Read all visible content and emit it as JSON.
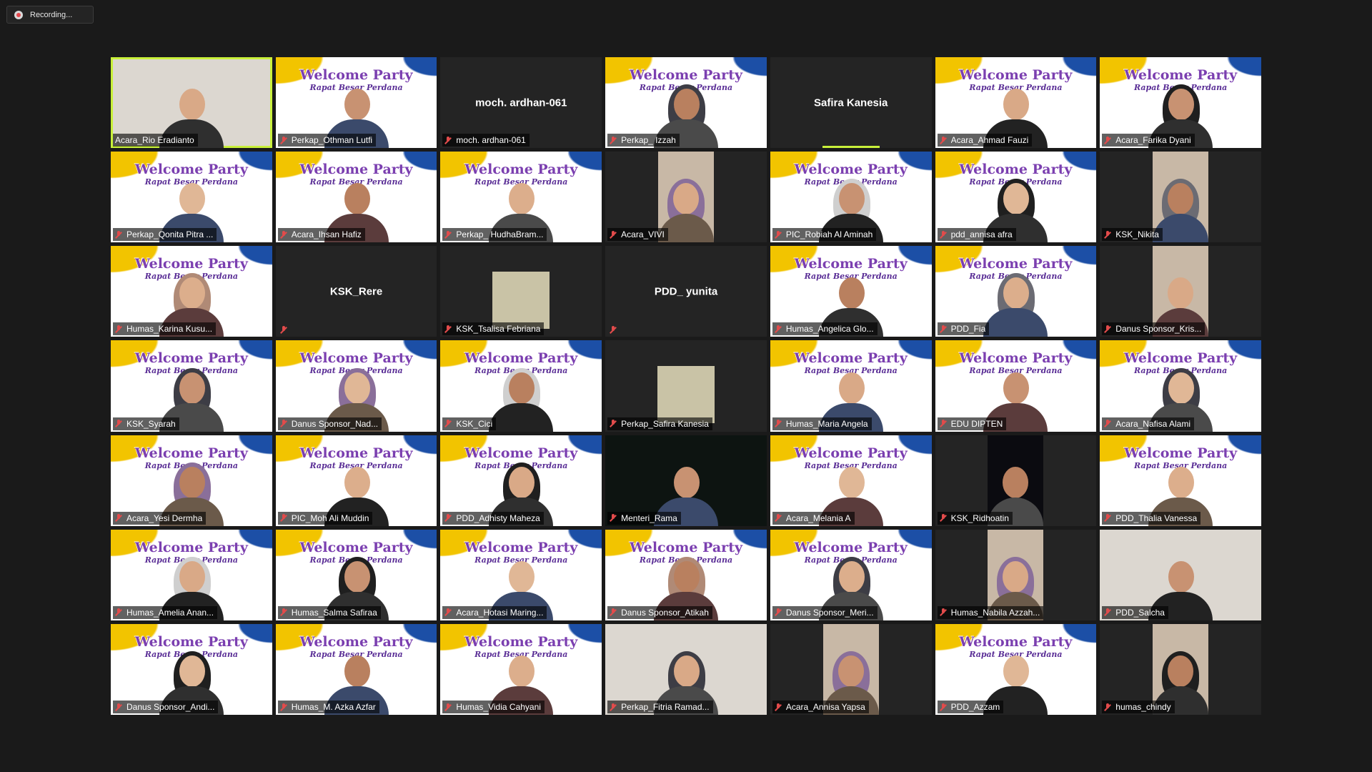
{
  "recording": {
    "label": "Recording..."
  },
  "participants": [
    {
      "name": "Acara_Rio Eradianto",
      "video": "photo",
      "speaking": true,
      "muted": false
    },
    {
      "name": "Perkap_Othman Lutfi",
      "video": "banner",
      "muted": true
    },
    {
      "name": "moch. ardhan-061",
      "video": "off",
      "display": "moch. ardhan-061",
      "muted": true
    },
    {
      "name": "Perkap_ Izzah",
      "video": "banner",
      "muted": true,
      "hijab": true
    },
    {
      "name": "Safira Kanesia",
      "video": "off",
      "display": "Safira Kanesia",
      "muted": false,
      "talking": true
    },
    {
      "name": "Acara_Ahmad Fauzi",
      "video": "banner",
      "muted": true
    },
    {
      "name": "Acara_Farika Dyani",
      "video": "banner",
      "muted": true,
      "hijab": true
    },
    {
      "name": "Perkap_Qonita Pitra ...",
      "video": "banner",
      "muted": true
    },
    {
      "name": "Acara_Ihsan Hafiz",
      "video": "banner",
      "muted": true
    },
    {
      "name": "Perkap_ HudhaBram...",
      "video": "banner",
      "muted": true
    },
    {
      "name": "Acara_VIVI",
      "video": "inset",
      "muted": true,
      "hijab": true
    },
    {
      "name": "PIC_Robiah Al Aminah",
      "video": "banner",
      "muted": true,
      "hijab": true
    },
    {
      "name": "pdd_annisa afra",
      "video": "banner",
      "muted": true,
      "hijab": true
    },
    {
      "name": "KSK_Nikita",
      "video": "inset",
      "muted": true,
      "hijab": true
    },
    {
      "name": "Humas_Karina Kusu...",
      "video": "banner",
      "muted": true,
      "hijab": true
    },
    {
      "name": "KSK_Rere",
      "video": "off",
      "display": "KSK_Rere",
      "muted": true,
      "notag": true
    },
    {
      "name": "KSK_Tsalisa Febriana",
      "video": "small",
      "muted": true
    },
    {
      "name": "PDD_ yunita",
      "video": "off",
      "display": "PDD_ yunita",
      "muted": true,
      "notag": true
    },
    {
      "name": "Humas_Angelica Glo...",
      "video": "banner",
      "muted": true
    },
    {
      "name": "PDD_Fia",
      "video": "banner",
      "muted": true,
      "hijab": true
    },
    {
      "name": "Danus Sponsor_Kris...",
      "video": "inset",
      "muted": true
    },
    {
      "name": "KSK_Syarah",
      "video": "banner",
      "muted": true,
      "hijab": true
    },
    {
      "name": "Danus Sponsor_Nad...",
      "video": "banner",
      "muted": true,
      "hijab": true
    },
    {
      "name": "KSK_Cici",
      "video": "banner",
      "muted": true,
      "hijab": true
    },
    {
      "name": "Perkap_Safira Kanesia",
      "video": "small",
      "muted": true
    },
    {
      "name": "Humas_Maria Angela",
      "video": "banner",
      "muted": true
    },
    {
      "name": "EDU DIPTEN",
      "video": "banner",
      "muted": true
    },
    {
      "name": "Acara_Nafisa Alami",
      "video": "banner",
      "muted": true,
      "hijab": true
    },
    {
      "name": "Acara_Yesi Dermha",
      "video": "banner",
      "muted": true,
      "hijab": true
    },
    {
      "name": "PIC_Moh Ali Muddin",
      "video": "banner",
      "muted": true
    },
    {
      "name": "PDD_Adhisty Maheza",
      "video": "banner",
      "muted": true,
      "hijab": true
    },
    {
      "name": "Menteri_Rama",
      "video": "dark",
      "muted": true
    },
    {
      "name": "Acara_Melania A",
      "video": "banner",
      "muted": true
    },
    {
      "name": "KSK_Ridhoatin",
      "video": "inset-dark",
      "muted": true
    },
    {
      "name": "PDD_Thalia Vanessa",
      "video": "banner",
      "muted": true
    },
    {
      "name": "Humas_Amelia Anan...",
      "video": "banner",
      "muted": true,
      "hijab": true
    },
    {
      "name": "Humas_Salma Safiraa",
      "video": "banner",
      "muted": true,
      "hijab": true
    },
    {
      "name": "Acara_Hotasi Maring...",
      "video": "banner",
      "muted": true
    },
    {
      "name": "Danus Sponsor_Atikah",
      "video": "banner",
      "muted": true,
      "hijab": true
    },
    {
      "name": "Danus Sponsor_Meri...",
      "video": "banner",
      "muted": true,
      "hijab": true
    },
    {
      "name": "Humas_Nabila Azzah...",
      "video": "inset",
      "muted": true,
      "hijab": true
    },
    {
      "name": "PDD_Salcha",
      "video": "photo",
      "muted": true
    },
    {
      "name": "Danus Sponsor_Andi...",
      "video": "banner",
      "muted": true,
      "hijab": true
    },
    {
      "name": "Humas_M. Azka Azfar",
      "video": "banner",
      "muted": true
    },
    {
      "name": "Humas_Vidia Cahyani",
      "video": "banner",
      "muted": true
    },
    {
      "name": "Perkap_Fitria Ramad...",
      "video": "photo",
      "muted": true,
      "hijab": true
    },
    {
      "name": "Acara_Annisa Yapsa",
      "video": "inset",
      "muted": true,
      "hijab": true
    },
    {
      "name": "PDD_Azzam",
      "video": "banner",
      "muted": true
    },
    {
      "name": "humas_chindy",
      "video": "inset",
      "muted": true,
      "hijab": true
    }
  ],
  "banner": {
    "title": "Welcome Party",
    "subtitle": "Rapat Besar Perdana"
  },
  "colors": {
    "speaking_outline": "#c8f03a",
    "muted_icon": "#e24b4b",
    "banner_purple": "#7b3fb0"
  }
}
